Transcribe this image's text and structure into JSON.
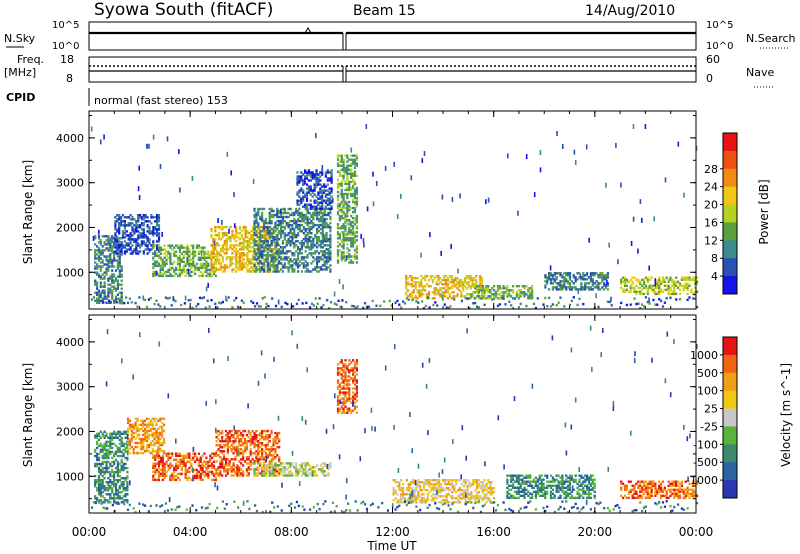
{
  "header": {
    "station": "Syowa South (fitACF)",
    "beam": "Beam 15",
    "date": "14/Aug/2010"
  },
  "strips": {
    "nsky_label": "N.Sky",
    "nsky_ticks": [
      "10^5",
      "10^0"
    ],
    "nsearch_label": "N.Search",
    "nsearch_ticks": [
      "10^5",
      "10^0"
    ],
    "freq_label_1": "Freq.",
    "freq_label_2": "[MHz]",
    "freq_ticks": [
      "18",
      "8"
    ],
    "nave_label": "Nave",
    "nave_ticks": [
      "60",
      "0"
    ],
    "cpid_label": "CPID",
    "cpid_text": "normal (fast stereo) 153"
  },
  "chart_data": [
    {
      "type": "heatmap",
      "panel": "power",
      "ylabel": "Slant Range [km]",
      "yticks": [
        "1000",
        "2000",
        "3000",
        "4000"
      ],
      "ylim": [
        180,
        4600
      ],
      "xlim": [
        0,
        24
      ],
      "colorbar_label": "Power [dB]",
      "colorbar_ticks": [
        "4",
        "8",
        "12",
        "16",
        "20",
        "24",
        "28"
      ],
      "colorbar_colors": [
        "#1414e6",
        "#2a50b4",
        "#3c8a8c",
        "#5aa03c",
        "#b4d21e",
        "#f0c814",
        "#f08c14",
        "#f05014",
        "#e61414"
      ],
      "regions": [
        {
          "t": [
            0.2,
            1.3
          ],
          "r": [
            300,
            1800
          ],
          "level": 2
        },
        {
          "t": [
            1.0,
            2.8
          ],
          "r": [
            1400,
            2300
          ],
          "level": 1
        },
        {
          "t": [
            2.5,
            5.0
          ],
          "r": [
            900,
            1600
          ],
          "level": 3
        },
        {
          "t": [
            4.8,
            7.5
          ],
          "r": [
            1000,
            2000
          ],
          "level": 5
        },
        {
          "t": [
            6.5,
            9.5
          ],
          "r": [
            1000,
            2400
          ],
          "level": 2
        },
        {
          "t": [
            8.2,
            9.6
          ],
          "r": [
            2400,
            3300
          ],
          "level": 1
        },
        {
          "t": [
            9.8,
            10.6
          ],
          "r": [
            1200,
            3600
          ],
          "level": 3
        },
        {
          "t": [
            12.5,
            15.5
          ],
          "r": [
            400,
            900
          ],
          "level": 5
        },
        {
          "t": [
            15.0,
            17.5
          ],
          "r": [
            400,
            700
          ],
          "level": 3
        },
        {
          "t": [
            18.0,
            20.5
          ],
          "r": [
            600,
            1000
          ],
          "level": 2
        },
        {
          "t": [
            21.0,
            24.0
          ],
          "r": [
            500,
            900
          ],
          "level": 4
        }
      ]
    },
    {
      "type": "heatmap",
      "panel": "velocity",
      "ylabel": "Slant Range [km]",
      "yticks": [
        "1000",
        "2000",
        "3000",
        "4000"
      ],
      "ylim": [
        180,
        4600
      ],
      "xlim": [
        0,
        24
      ],
      "xlabel": "Time UT",
      "xticks": [
        "00:00",
        "04:00",
        "08:00",
        "12:00",
        "16:00",
        "20:00",
        "00:00"
      ],
      "colorbar_label": "Velocity [m s^-1]",
      "colorbar_ticks": [
        "1000",
        "500",
        "100",
        "25",
        "-25",
        "-100",
        "-500",
        "-1000"
      ],
      "colorbar_colors": [
        "#2838b4",
        "#2a64a0",
        "#3c8a6e",
        "#5ab43c",
        "#c8c8c8",
        "#f0c814",
        "#f0a014",
        "#f06414",
        "#e61414"
      ],
      "regions": [
        {
          "t": [
            0.2,
            1.5
          ],
          "r": [
            400,
            2000
          ],
          "level": 2
        },
        {
          "t": [
            1.5,
            3.0
          ],
          "r": [
            1500,
            2300
          ],
          "level": 6
        },
        {
          "t": [
            2.5,
            5.0
          ],
          "r": [
            900,
            1500
          ],
          "level": 7
        },
        {
          "t": [
            5.0,
            7.5
          ],
          "r": [
            1000,
            2000
          ],
          "level": 7
        },
        {
          "t": [
            6.5,
            9.5
          ],
          "r": [
            1000,
            1300
          ],
          "level": 4
        },
        {
          "t": [
            9.8,
            10.6
          ],
          "r": [
            2400,
            3600
          ],
          "level": 7
        },
        {
          "t": [
            12.0,
            16.0
          ],
          "r": [
            400,
            900
          ],
          "level": 5
        },
        {
          "t": [
            16.5,
            20.0
          ],
          "r": [
            500,
            1000
          ],
          "level": 2
        },
        {
          "t": [
            21.0,
            24.0
          ],
          "r": [
            500,
            900
          ],
          "level": 7
        }
      ]
    }
  ]
}
